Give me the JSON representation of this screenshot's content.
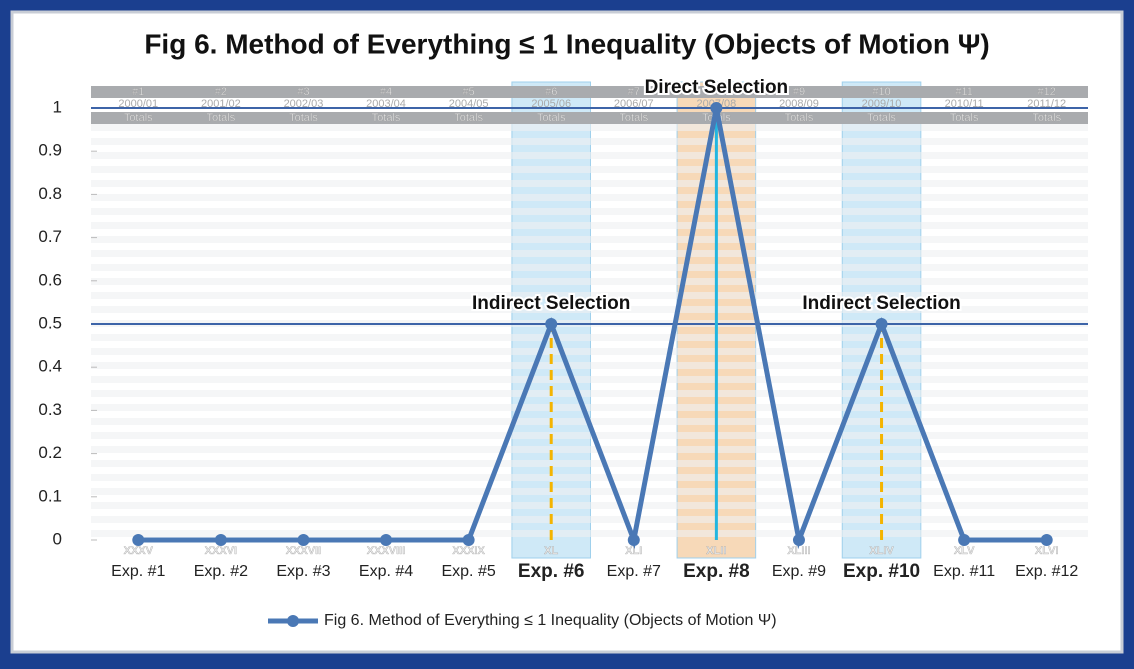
{
  "chart_data": {
    "type": "line",
    "title": "Fig 6. Method of Everything ≤ 1 Inequality (Objects of Motion Ψ)",
    "categories": [
      "Exp. #1",
      "Exp. #2",
      "Exp. #3",
      "Exp. #4",
      "Exp. #5",
      "Exp. #6",
      "Exp. #7",
      "Exp. #8",
      "Exp. #9",
      "Exp. #10",
      "Exp. #11",
      "Exp. #12"
    ],
    "series": [
      {
        "name": "Fig 6. Method of Everything ≤ 1 Inequality (Objects of Motion Ψ)",
        "color": "#4a78b5",
        "values": [
          0,
          0,
          0,
          0,
          0,
          0.5,
          0,
          1,
          0,
          0.5,
          0,
          0
        ]
      }
    ],
    "ylim": [
      0,
      1
    ],
    "yticks": [
      0,
      0.1,
      0.2,
      0.3,
      0.4,
      0.5,
      0.6,
      0.7,
      0.8,
      0.9,
      1
    ],
    "reference_lines": [
      1,
      0.5
    ],
    "reference_color": "#3d64a8",
    "highlight": [
      {
        "category": "Exp. #6",
        "color": "#cfe9f7",
        "line_color": "#f4b400"
      },
      {
        "category": "Exp. #8",
        "color": "#f7d9b8",
        "line_color": "#22b6e0"
      },
      {
        "category": "Exp. #10",
        "color": "#cfe9f7",
        "line_color": "#f4b400"
      }
    ],
    "annotations": [
      {
        "text": "Direct Selection",
        "category": "Exp. #8"
      },
      {
        "text": "Indirect Selection",
        "category": "Exp. #6"
      },
      {
        "text": "Indirect Selection",
        "category": "Exp. #10"
      }
    ],
    "legend": "bottom",
    "background_table": {
      "numbers": [
        "#1",
        "#2",
        "#3",
        "#4",
        "#5",
        "#6",
        "#7",
        "#8",
        "#9",
        "#10",
        "#11",
        "#12"
      ],
      "years": [
        "2000/01",
        "2001/02",
        "2002/03",
        "2003/04",
        "2004/05",
        "2005/06",
        "2006/07",
        "2007/08",
        "2008/09",
        "2009/10",
        "2010/11",
        "2011/12"
      ],
      "totals": [
        "Totals",
        "Totals",
        "Totals",
        "Totals",
        "Totals",
        "Totals",
        "Totals",
        "Totals",
        "Totals",
        "Totals",
        "Totals",
        "Totals"
      ],
      "roman": [
        "XXXV",
        "XXXVI",
        "XXXVII",
        "XXXVIII",
        "XXXIX",
        "XL",
        "XLI",
        "XLII",
        "XLIII",
        "XLIV",
        "XLV",
        "XLVI"
      ]
    }
  }
}
